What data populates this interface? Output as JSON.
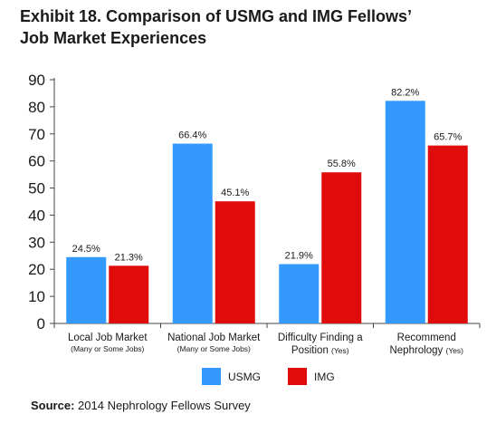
{
  "header": {
    "title_line1": "Exhibit 18. Comparison of USMG and IMG Fellows’",
    "title_line2": "Job Market Experiences"
  },
  "footer": {
    "source_label": "Source:",
    "source_text": "2014 Nephrology Fellows Survey"
  },
  "colors": {
    "usmg": "#3399FF",
    "img": "#E00B0B",
    "axis": "#444444"
  },
  "chart_data": {
    "type": "bar",
    "title": "Exhibit 18. Comparison of USMG and IMG Fellows’ Job Market Experiences",
    "xlabel": "",
    "ylabel": "",
    "ylim": [
      0,
      90
    ],
    "yticks": [
      0,
      10,
      20,
      30,
      40,
      50,
      60,
      70,
      80,
      90
    ],
    "grid": false,
    "legend": "bottom",
    "categories": [
      {
        "main": "Local Job Market",
        "sub": "(Many or Some Jobs)"
      },
      {
        "main": "National Job Market",
        "sub": "(Many or Some Jobs)"
      },
      {
        "main": "Difficulty Finding a",
        "main2": "Position",
        "sub": "(Yes)"
      },
      {
        "main": "Recommend",
        "main2": "Nephrology",
        "sub": "(Yes)"
      }
    ],
    "series": [
      {
        "name": "USMG",
        "values": [
          24.5,
          66.4,
          21.9,
          82.2
        ],
        "labels": [
          "24.5%",
          "66.4%",
          "21.9%",
          "82.2%"
        ]
      },
      {
        "name": "IMG",
        "values": [
          21.3,
          45.1,
          55.8,
          65.7
        ],
        "labels": [
          "21.3%",
          "45.1%",
          "55.8%",
          "65.7%"
        ]
      }
    ]
  }
}
